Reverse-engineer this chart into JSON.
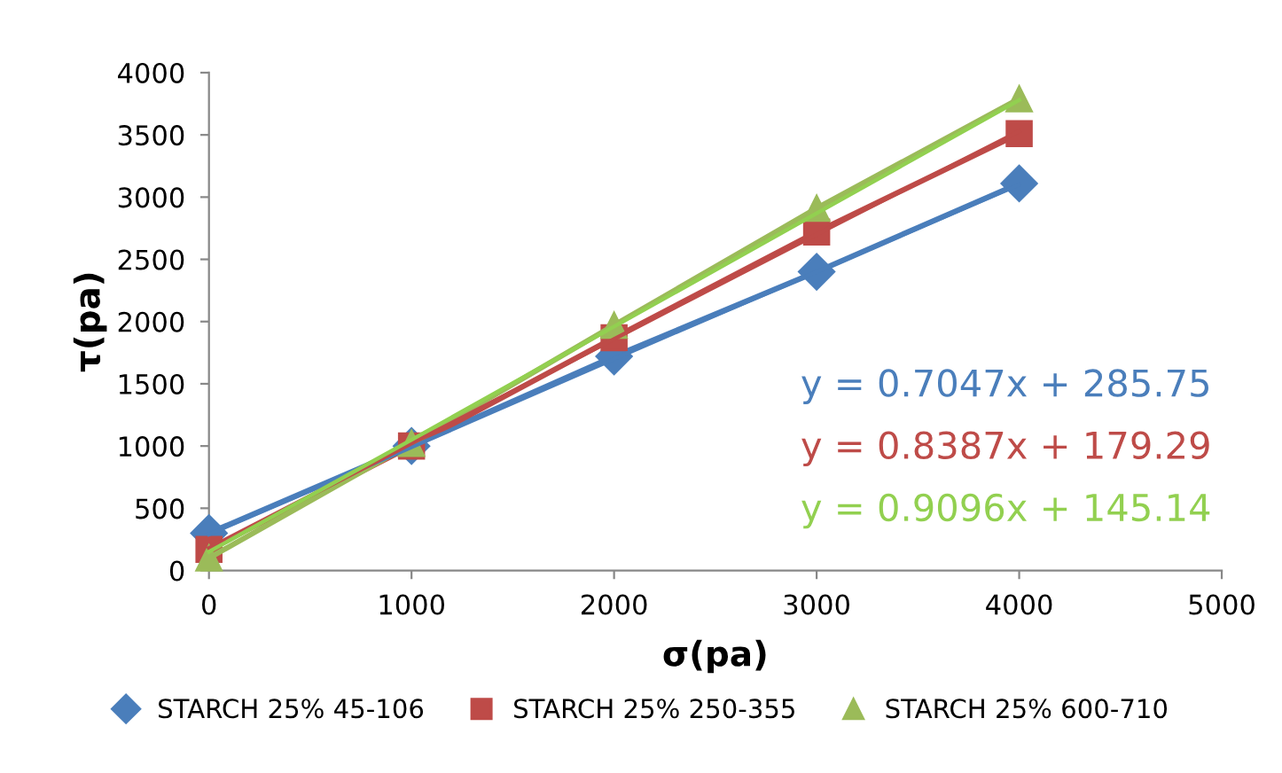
{
  "chart_data": {
    "type": "line",
    "xlabel": "σ(pa)",
    "ylabel": "τ(pa)",
    "x": [
      0,
      1000,
      2000,
      3000,
      4000
    ],
    "series": [
      {
        "name": "STARCH 25% 45-106",
        "color": "#4a7ebb",
        "marker": "diamond",
        "values": [
          300,
          1000,
          1720,
          2400,
          3110
        ]
      },
      {
        "name": "STARCH 25% 250-355",
        "color": "#be4b48",
        "marker": "square",
        "values": [
          170,
          1000,
          1870,
          2720,
          3510
        ]
      },
      {
        "name": "STARCH 25% 600-710",
        "color": "#9bbb59",
        "marker": "triangle",
        "values": [
          100,
          1020,
          1970,
          2910,
          3790
        ]
      },
      {
        "type": "line",
        "marker": "none",
        "color": "#4a7ebb",
        "values": [
          290,
          990,
          1700,
          2400,
          3100
        ]
      },
      {
        "type": "line",
        "marker": "none",
        "color": "#be4b48",
        "values": [
          180,
          1020,
          1860,
          2700,
          3530
        ]
      },
      {
        "type": "line",
        "marker": "none",
        "color": "#92d050",
        "values": [
          150,
          1050,
          1960,
          2870,
          3780
        ]
      }
    ],
    "annotations": [
      "y = 0.7047x + 285.75",
      "y = 0.8387x + 179.29",
      "y = 0.9096x + 145.14"
    ],
    "xlim": [
      0,
      5000
    ],
    "xticks": [
      0,
      1000,
      2000,
      3000,
      4000,
      5000
    ],
    "ylim": [
      0,
      4000
    ],
    "yticks": [
      0,
      500,
      1000,
      1500,
      2000,
      2500,
      3000,
      3500,
      4000
    ],
    "grid": false,
    "legend": "bottom"
  }
}
